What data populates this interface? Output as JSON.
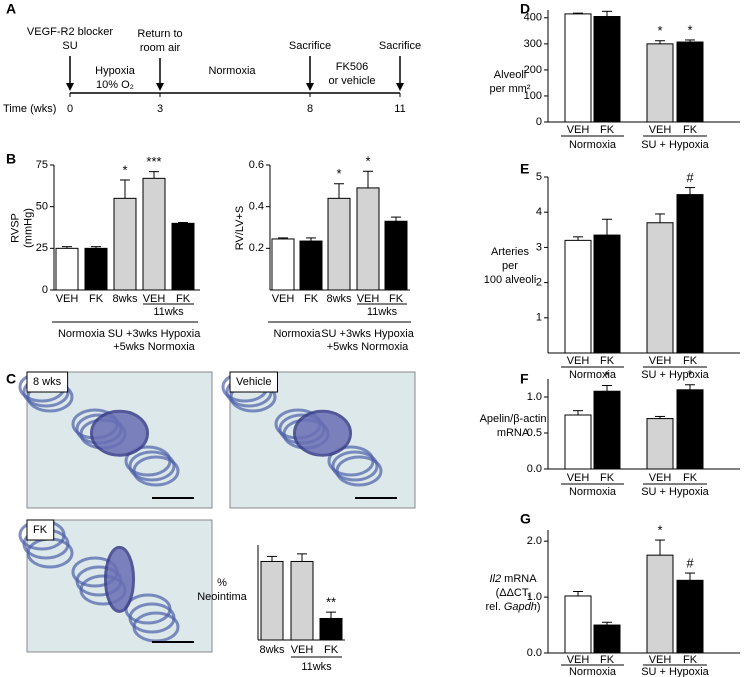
{
  "panel_labels": [
    "A",
    "B",
    "C",
    "D",
    "E",
    "F",
    "G"
  ],
  "timeline": {
    "axis_label": "Time (wks)",
    "xlim": [
      0,
      11
    ],
    "xticks": [
      0,
      3,
      8,
      11
    ],
    "events": [
      {
        "x": 0,
        "lines": [
          "VEGF-R2 blocker",
          "SU"
        ]
      },
      {
        "x": 3,
        "lines": [
          "Return to",
          "room air"
        ]
      },
      {
        "x": 8,
        "lines": [
          "Sacrifice"
        ]
      },
      {
        "x": 11,
        "lines": [
          "Sacrifice"
        ]
      }
    ],
    "periods": [
      {
        "lines": [
          "Hypoxia",
          "10% O₂"
        ]
      },
      {
        "lines": [
          "Normoxia"
        ]
      },
      {
        "lines": [
          "FK506",
          "or vehicle"
        ]
      }
    ]
  },
  "micrographs": {
    "labels": [
      "8 wks",
      "Vehicle",
      "FK"
    ]
  },
  "chart_data": [
    {
      "type": "bar",
      "ylabel": [
        [
          {
            "text": "RVSP"
          }
        ],
        [
          {
            "text": "(mmHg)"
          }
        ]
      ],
      "categories": [
        "VEH",
        "FK",
        "8wks",
        "VEH",
        "FK"
      ],
      "values": [
        25,
        25,
        55,
        67,
        40
      ],
      "errors": [
        1,
        1,
        11,
        4,
        0.5
      ],
      "colors": [
        "#ffffff",
        "#000000",
        "#d3d3d3",
        "#d3d3d3",
        "#000000"
      ],
      "annotations": [
        null,
        null,
        "*",
        "***",
        null
      ],
      "groups": [
        [
          "Normoxia"
        ],
        [
          "SU +3wks Hypoxia",
          "+5wks Normoxia"
        ]
      ],
      "subgroup": "11wks",
      "ylim": [
        0,
        75
      ],
      "yticks": [
        0,
        25,
        50,
        75
      ]
    },
    {
      "type": "bar",
      "ylabel": [
        [
          {
            "text": "RV/LV+S"
          }
        ]
      ],
      "categories": [
        "VEH",
        "FK",
        "8wks",
        "VEH",
        "FK"
      ],
      "values": [
        0.245,
        0.235,
        0.44,
        0.49,
        0.33
      ],
      "errors": [
        0.005,
        0.015,
        0.07,
        0.08,
        0.02
      ],
      "colors": [
        "#ffffff",
        "#000000",
        "#d3d3d3",
        "#d3d3d3",
        "#000000"
      ],
      "annotations": [
        null,
        null,
        "*",
        "*",
        null
      ],
      "groups": [
        [
          "Normoxia"
        ],
        [
          "SU +3wks Hypoxia",
          "+5wks Normoxia"
        ]
      ],
      "subgroup": "11wks",
      "ylim": [
        0,
        0.6
      ],
      "yticks": [
        0.2,
        0.4,
        0.6
      ]
    },
    {
      "type": "bar",
      "ylabel": [
        [
          {
            "text": "%"
          }
        ],
        [
          {
            "text": "Neointima"
          }
        ]
      ],
      "categories": [
        "8wks",
        "VEH",
        "FK"
      ],
      "values": [
        62,
        62,
        17
      ],
      "errors": [
        4,
        6,
        5
      ],
      "colors": [
        "#d3d3d3",
        "#d3d3d3",
        "#000000"
      ],
      "annotations": [
        null,
        null,
        "**"
      ],
      "subgroup": "11wks",
      "ylim": [
        0,
        75
      ]
    },
    {
      "type": "bar",
      "ylabel": [
        [
          {
            "text": "Alveoli"
          }
        ],
        [
          {
            "text": "per mm²"
          }
        ]
      ],
      "categories": [
        "VEH",
        "FK",
        "VEH",
        "FK"
      ],
      "values": [
        415,
        405,
        300,
        307
      ],
      "errors": [
        3,
        20,
        12,
        8
      ],
      "colors": [
        "#ffffff",
        "#000000",
        "#d3d3d3",
        "#000000"
      ],
      "annotations": [
        null,
        null,
        "*",
        "*"
      ],
      "groups": [
        [
          "Normoxia"
        ],
        [
          "SU + Hypoxia"
        ]
      ],
      "ylim": [
        0,
        430
      ],
      "yticks": [
        0,
        100,
        200,
        300,
        400
      ]
    },
    {
      "type": "bar",
      "ylabel": [
        [
          {
            "text": "Arteries"
          }
        ],
        [
          {
            "text": "per"
          }
        ],
        [
          {
            "text": "100 alveoli"
          }
        ]
      ],
      "categories": [
        "VEH",
        "FK",
        "VEH",
        "FK"
      ],
      "values": [
        3.2,
        3.35,
        3.7,
        4.5
      ],
      "errors": [
        0.1,
        0.45,
        0.25,
        0.2
      ],
      "colors": [
        "#ffffff",
        "#000000",
        "#d3d3d3",
        "#000000"
      ],
      "annotations": [
        null,
        null,
        null,
        "#"
      ],
      "groups": [
        [
          "Normoxia"
        ],
        [
          "SU + Hypoxia"
        ]
      ],
      "ylim": [
        0,
        5
      ],
      "yticks": [
        1,
        2,
        3,
        4,
        5
      ]
    },
    {
      "type": "bar",
      "ylabel": [
        [
          {
            "text": "Apelin/β-actin"
          }
        ],
        [
          {
            "text": "mRNA"
          }
        ]
      ],
      "categories": [
        "VEH",
        "FK",
        "VEH",
        "FK"
      ],
      "values": [
        0.75,
        1.08,
        0.7,
        1.1
      ],
      "errors": [
        0.06,
        0.08,
        0.03,
        0.07
      ],
      "colors": [
        "#ffffff",
        "#000000",
        "#d3d3d3",
        "#000000"
      ],
      "annotations": [
        null,
        "*",
        null,
        "*"
      ],
      "groups": [
        [
          "Normoxia"
        ],
        [
          "SU + Hypoxia"
        ]
      ],
      "ylim": [
        0,
        1.25
      ],
      "yticks": [
        {
          "value": 0,
          "label": "0.0"
        },
        0.5,
        {
          "value": 1,
          "label": "1.0"
        }
      ]
    },
    {
      "type": "bar",
      "ylabel": [
        [
          {
            "text": "Il2",
            "italic": true
          },
          {
            "text": " mRNA"
          }
        ],
        [
          {
            "text": "(ΔΔCT,"
          }
        ],
        [
          {
            "text": "rel. "
          },
          {
            "text": "Gapdh",
            "italic": true
          },
          {
            "text": ")"
          }
        ]
      ],
      "categories": [
        "VEH",
        "FK",
        "VEH",
        "FK"
      ],
      "values": [
        1.02,
        0.5,
        1.75,
        1.3
      ],
      "errors": [
        0.08,
        0.05,
        0.27,
        0.13
      ],
      "colors": [
        "#ffffff",
        "#000000",
        "#d3d3d3",
        "#000000"
      ],
      "annotations": [
        null,
        null,
        "*",
        "#"
      ],
      "groups": [
        [
          "Normoxia"
        ],
        [
          "SU + Hypoxia"
        ]
      ],
      "ylim": [
        0,
        2.2
      ],
      "yticks": [
        {
          "value": 0,
          "label": "0.0"
        },
        {
          "value": 1,
          "label": "1.0"
        },
        {
          "value": 2,
          "label": "2.0"
        }
      ]
    }
  ]
}
